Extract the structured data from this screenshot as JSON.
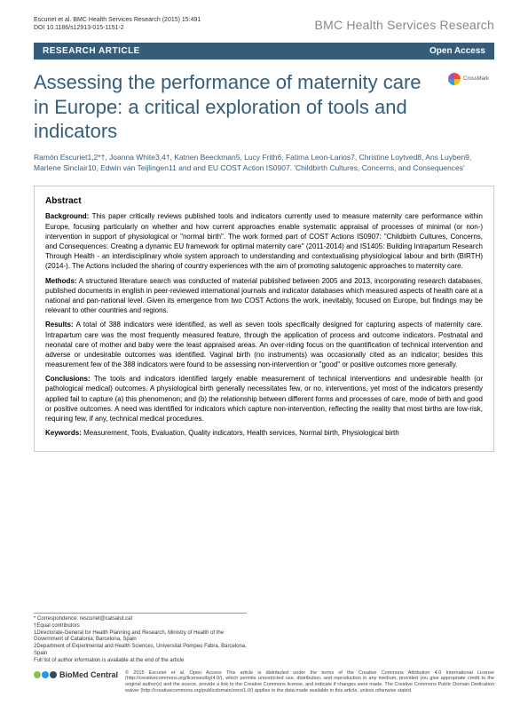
{
  "header": {
    "citation": "Escuriet et al. BMC Health Services Research  (2015) 15:491",
    "doi": "DOI 10.1186/s12913-015-1151-2",
    "journal_logo_text": "BMC Health Services Research"
  },
  "article_bar": {
    "type_label": "RESEARCH ARTICLE",
    "open_access": "Open Access"
  },
  "title": "Assessing the performance of maternity care in Europe: a critical exploration of tools and indicators",
  "crossmark_label": "CrossMark",
  "authors": "Ramón Escuriet1,2*†, Joanna White3,4†, Katrien Beeckman5, Lucy Frith6, Fatima Leon-Larios7, Christine Loytved8, Ans Luyben9, Marlene Sinclair10, Edwin van Teijlingen11 and and EU COST Action IS0907. 'Childbirth Cultures, Concerns, and Consequences'",
  "abstract": {
    "heading": "Abstract",
    "background_label": "Background:",
    "background": "This paper critically reviews published tools and indicators currently used to measure maternity care performance within Europe, focusing particularly on whether and how current approaches enable systematic appraisal of processes of minimal (or non-) intervention in support of physiological or \"normal birth\". The work formed part of COST Actions IS0907: \"Childbirth Cultures, Concerns, and Consequences: Creating a dynamic EU framework for optimal maternity care\" (2011-2014) and IS1405: Building Intrapartum Research Through Health - an interdisciplinary whole system approach to understanding and contextualising physiological labour and birth (BIRTH) (2014-). The Actions included the sharing of country experiences with the aim of promoting salutogenic approaches to maternity care.",
    "methods_label": "Methods:",
    "methods": "A structured literature search was conducted of material published between 2005 and 2013, incorporating research databases, published documents in english in peer-reviewed international journals and indicator databases which measured aspects of health care at a national and pan-national level. Given its emergence from two COST Actions the work, inevitably, focused on Europe, but findings may be relevant to other countries and regions.",
    "results_label": "Results:",
    "results": "A total of 388 indicators were identified, as well as seven tools specifically designed for capturing aspects of maternity care. Intrapartum care was the most frequently measured feature, through the application of process and outcome indicators. Postnatal and neonatal care of mother and baby were the least appraised areas. An over-riding focus on the quantification of technical intervention and adverse or undesirable outcomes was identified. Vaginal birth (no instruments) was occasionally cited as an indicator; besides this measurement few of the 388 indicators were found to be assessing non-intervention or \"good\" or positive outcomes more generally.",
    "conclusions_label": "Conclusions:",
    "conclusions": "The tools and indicators identified largely enable measurement of technical interventions and undesirable health (or pathological medical) outcomes. A physiological birth generally necessitates few, or no, interventions, yet most of the indicators presently applied fail to capture (a) this phenomenon; and (b) the relationship between different forms and processes of care, mode of birth and good or positive outcomes. A need was identified for indicators which capture non-intervention, reflecting the reality that most births are low-risk, requiring few, if any, technical medical procedures.",
    "keywords_label": "Keywords:",
    "keywords": "Measurement, Tools, Evaluation, Quality indicators, Health services, Normal birth, Physiological birth"
  },
  "correspondence": {
    "line1": "* Correspondence: rescuriet@catsalut.cat",
    "line2": "†Equal contributors",
    "line3": "1Directorate-General for Health Planning and Research, Ministry of Health of the Government of Catalonia, Barcelona, Spain",
    "line4": "2Department of Experimental and Health Sciences, Universitat Pompeu Fabra, Barcelona, Spain",
    "line5": "Full list of author information is available at the end of the article"
  },
  "license": {
    "logo_text": "BioMed Central",
    "text": "© 2015 Escuriet et al. Open Access This article is distributed under the terms of the Creative Commons Attribution 4.0 International License (http://creativecommons.org/licenses/by/4.0/), which permits unrestricted use, distribution, and reproduction in any medium, provided you give appropriate credit to the original author(s) and the source, provide a link to the Creative Commons license, and indicate if changes were made. The Creative Commons Public Domain Dedication waiver (http://creativecommons.org/publicdomain/zero/1.0/) applies to the data made available in this article, unless otherwise stated."
  },
  "colors": {
    "brand_blue": "#355d7a",
    "text_gray": "#333333",
    "logo_gray": "#888888",
    "border_gray": "#cccccc",
    "bmc_green": "#8bc34a",
    "bmc_blue": "#2196f3",
    "bmc_navy": "#34495e"
  }
}
